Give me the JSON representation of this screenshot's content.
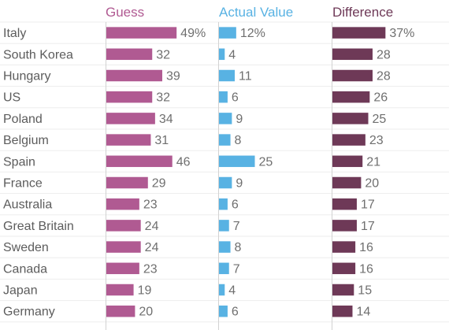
{
  "chart_data": {
    "type": "bar",
    "categories": [
      "Italy",
      "South Korea",
      "Hungary",
      "US",
      "Poland",
      "Belgium",
      "Spain",
      "France",
      "Australia",
      "Great Britain",
      "Sweden",
      "Canada",
      "Japan",
      "Germany"
    ],
    "series": [
      {
        "name": "Guess",
        "color": "#b05a92",
        "values": [
          49,
          32,
          39,
          32,
          34,
          31,
          46,
          29,
          23,
          24,
          24,
          23,
          19,
          20
        ]
      },
      {
        "name": "Actual Value",
        "color": "#58b2e3",
        "values": [
          12,
          4,
          11,
          6,
          9,
          8,
          25,
          9,
          6,
          7,
          8,
          7,
          4,
          6
        ]
      },
      {
        "name": "Difference",
        "color": "#6e3957",
        "values": [
          37,
          28,
          28,
          26,
          25,
          23,
          21,
          20,
          17,
          17,
          16,
          16,
          15,
          14
        ]
      }
    ],
    "first_value_suffix": "%",
    "grid": "horizontal row lines",
    "legend": "column headers"
  }
}
